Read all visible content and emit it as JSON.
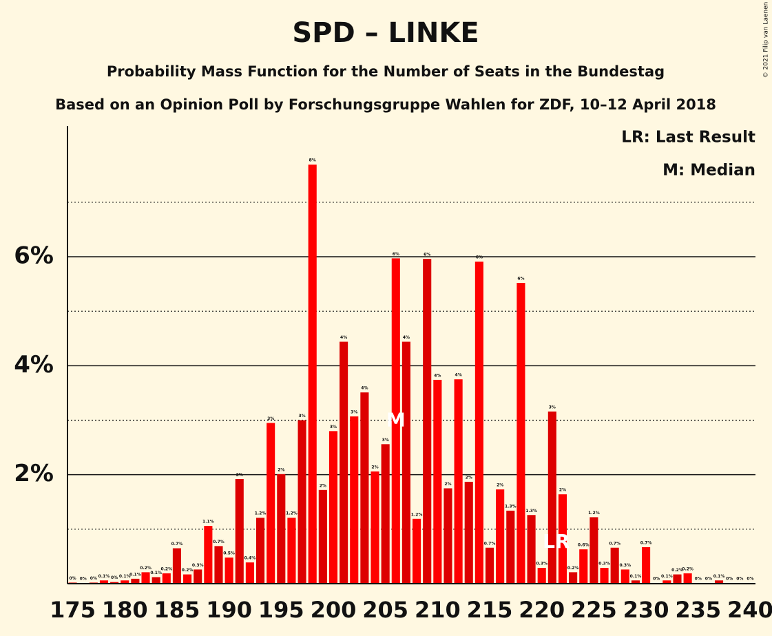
{
  "chart_data": {
    "type": "bar",
    "title": "SPD – LINKE",
    "subtitle": "Probability Mass Function for the Number of Seats in the Bundestag",
    "subtitle2": "Based on an Opinion Poll by Forschungsgruppe Wahlen for ZDF, 10–12 April 2018",
    "copyright": "© 2021 Filip van Laenen",
    "legend": [
      "LR: Last Result",
      "M: Median"
    ],
    "median": {
      "x": 206,
      "label": "M"
    },
    "last_result": {
      "x": 221,
      "label": "LR"
    },
    "x": [
      175,
      176,
      177,
      178,
      179,
      180,
      181,
      182,
      183,
      184,
      185,
      186,
      187,
      188,
      189,
      190,
      191,
      192,
      193,
      194,
      195,
      196,
      197,
      198,
      199,
      200,
      201,
      202,
      203,
      204,
      205,
      206,
      207,
      208,
      209,
      210,
      211,
      212,
      213,
      214,
      215,
      216,
      217,
      218,
      219,
      220,
      221,
      222,
      223,
      224,
      225,
      226,
      227,
      228,
      229,
      230,
      231,
      232,
      233,
      234,
      235,
      236,
      237,
      238,
      239,
      240
    ],
    "values": [
      0.02,
      0.01,
      0.02,
      0.06,
      0.03,
      0.06,
      0.09,
      0.21,
      0.12,
      0.19,
      0.65,
      0.17,
      0.26,
      1.06,
      0.69,
      0.48,
      1.92,
      0.39,
      1.21,
      2.95,
      2.01,
      1.21,
      3.0,
      7.69,
      1.72,
      2.8,
      4.44,
      3.07,
      3.51,
      2.06,
      2.56,
      5.97,
      4.44,
      1.19,
      5.96,
      3.74,
      1.75,
      3.75,
      1.87,
      5.91,
      0.66,
      1.73,
      1.34,
      5.52,
      1.26,
      0.29,
      3.16,
      1.64,
      0.21,
      0.63,
      1.22,
      0.29,
      0.66,
      0.26,
      0.06,
      0.67,
      0.01,
      0.06,
      0.17,
      0.19,
      0.01,
      0.01,
      0.06,
      0.01,
      0.01,
      0.01
    ],
    "value_labels": [
      "0%",
      "0%",
      "0%",
      "0.1%",
      "0%",
      "0.1%",
      "0.1%",
      "0.2%",
      "0.1%",
      "0.2%",
      "0.7%",
      "0.2%",
      "0.3%",
      "1.1%",
      "0.7%",
      "0.5%",
      "2%",
      "0.4%",
      "1.2%",
      "3%",
      "2%",
      "1.2%",
      "3%",
      "8%",
      "2%",
      "3%",
      "4%",
      "3%",
      "4%",
      "2%",
      "3%",
      "6%",
      "4%",
      "1.2%",
      "6%",
      "4%",
      "2%",
      "4%",
      "2%",
      "6%",
      "0.7%",
      "2%",
      "1.3%",
      "6%",
      "1.3%",
      "0.3%",
      "3%",
      "2%",
      "0.2%",
      "0.6%",
      "1.2%",
      "0.3%",
      "0.7%",
      "0.3%",
      "0.1%",
      "0.7%",
      "0%",
      "0.1%",
      "0.2%",
      "0.2%",
      "0%",
      "0%",
      "0.1%",
      "0%",
      "0%",
      "0%"
    ],
    "color": "#ff0000",
    "alt_color": "#dd0000",
    "xlim": [
      174.5,
      240.5
    ],
    "xticks": [
      175,
      180,
      185,
      190,
      195,
      200,
      205,
      210,
      215,
      220,
      225,
      230,
      235,
      240
    ],
    "ylim": [
      0,
      8.4
    ],
    "yticks": [
      {
        "value": 2,
        "label": "2%"
      },
      {
        "value": 4,
        "label": "4%"
      },
      {
        "value": 6,
        "label": "6%"
      }
    ],
    "minor_yticks": [
      1,
      3,
      5,
      7
    ],
    "grid": true
  }
}
